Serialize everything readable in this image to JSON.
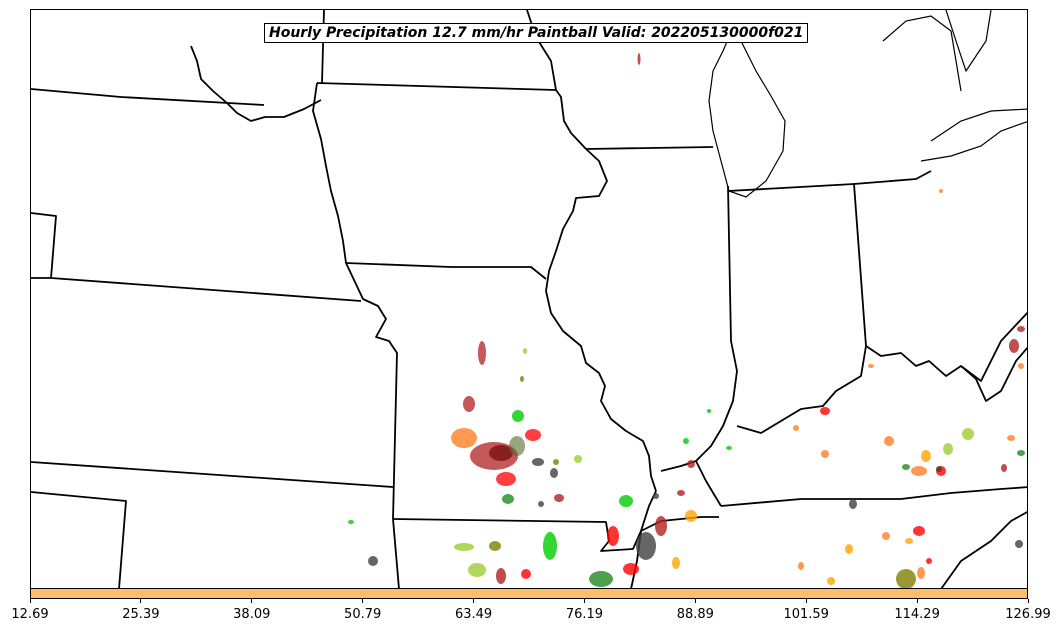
{
  "title": "Hourly Precipitation 12.7 mm/hr Paintball Valid: 202205130000f021",
  "colorbar": {
    "fill_color": "#fdbe6c",
    "tick_labels": [
      "12.69",
      "25.39",
      "38.09",
      "50.79",
      "63.49",
      "76.19",
      "88.89",
      "101.59",
      "114.29",
      "126.99"
    ]
  },
  "map": {
    "region": "central-us",
    "basemap_color": "#ffffff",
    "boundary_color": "#000000",
    "paintball_colors": [
      "#b22222",
      "#ff0000",
      "#ff7f27",
      "#00cc00",
      "#228b22",
      "#9acd32",
      "#556b2f",
      "#808000",
      "#404040",
      "#ffa500"
    ]
  }
}
